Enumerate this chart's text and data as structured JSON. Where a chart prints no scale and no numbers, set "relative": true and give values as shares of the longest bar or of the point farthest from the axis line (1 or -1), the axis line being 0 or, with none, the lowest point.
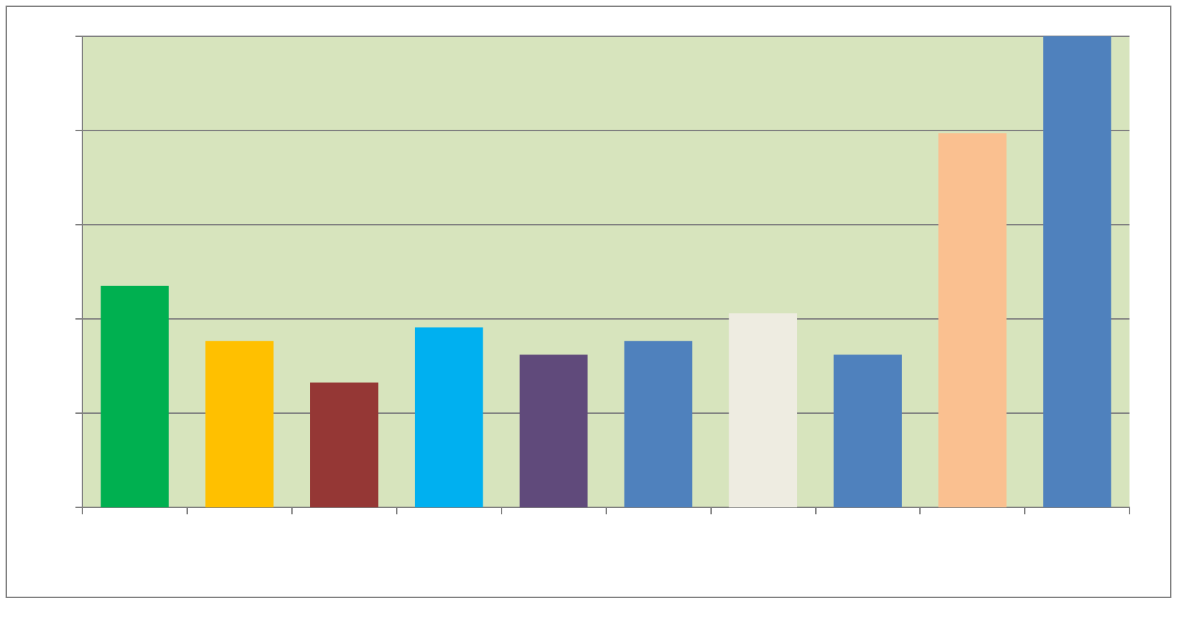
{
  "chart_data": {
    "type": "bar",
    "relative": true,
    "grid": "y",
    "categories": [
      null,
      null,
      null,
      null,
      null,
      null,
      null,
      null,
      null,
      null
    ],
    "values": [
      0.47,
      0.353,
      0.265,
      0.382,
      0.324,
      0.353,
      0.412,
      0.324,
      0.794,
      1
    ],
    "colors": [
      "#00b050",
      "#ffc000",
      "#953735",
      "#00b0f0",
      "#604a7b",
      "#4f81bd",
      "#eeece1",
      "#4f81bd",
      "#fac090",
      "#4f81bd"
    ]
  }
}
